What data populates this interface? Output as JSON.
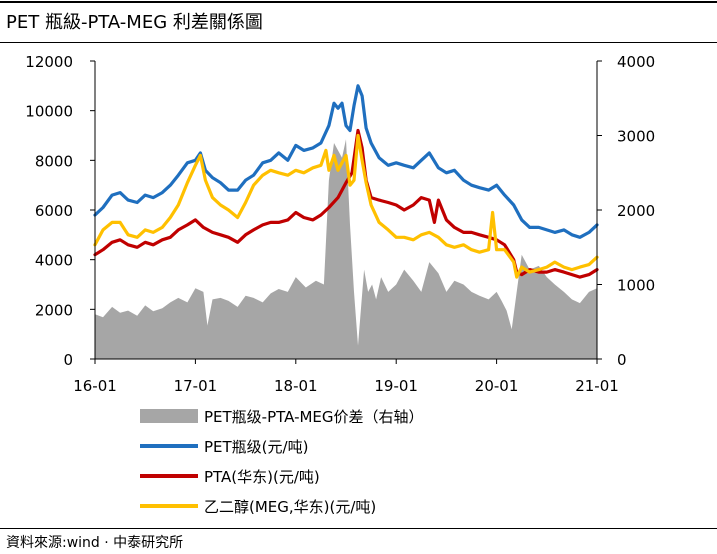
{
  "title": "PET 瓶級-PTA-MEG 利差關係圖",
  "source": "資料來源:wind · 中泰研究所",
  "chart_data": {
    "type": "line",
    "x_ticks": [
      "16-01",
      "17-01",
      "18-01",
      "19-01",
      "20-01",
      "21-01"
    ],
    "x_range": [
      2016.0,
      2021.0
    ],
    "y_left_ticks": [
      "0",
      "2000",
      "4000",
      "6000",
      "8000",
      "10000",
      "12000"
    ],
    "y_left_range": [
      0,
      12000
    ],
    "y_right_ticks": [
      "0",
      "1000",
      "2000",
      "3000",
      "4000"
    ],
    "y_right_range": [
      0,
      4000
    ],
    "series": [
      {
        "name": "PET瓶级-PTA-MEG价差（右轴）",
        "type": "area",
        "axis": "right",
        "color": "#a6a6a6",
        "x": [
          2016.0,
          2016.08,
          2016.17,
          2016.25,
          2016.33,
          2016.42,
          2016.5,
          2016.58,
          2016.67,
          2016.75,
          2016.83,
          2016.92,
          2017.0,
          2017.08,
          2017.12,
          2017.17,
          2017.25,
          2017.33,
          2017.42,
          2017.5,
          2017.58,
          2017.67,
          2017.75,
          2017.83,
          2017.92,
          2018.0,
          2018.1,
          2018.2,
          2018.28,
          2018.33,
          2018.38,
          2018.42,
          2018.46,
          2018.5,
          2018.54,
          2018.58,
          2018.62,
          2018.65,
          2018.68,
          2018.72,
          2018.76,
          2018.8,
          2018.85,
          2018.92,
          2019.0,
          2019.08,
          2019.17,
          2019.25,
          2019.33,
          2019.42,
          2019.5,
          2019.58,
          2019.67,
          2019.75,
          2019.83,
          2019.92,
          2020.0,
          2020.05,
          2020.1,
          2020.15,
          2020.2,
          2020.25,
          2020.33,
          2020.42,
          2020.5,
          2020.58,
          2020.67,
          2020.75,
          2020.83,
          2020.92,
          2021.0
        ],
        "y": [
          600,
          560,
          700,
          620,
          650,
          580,
          720,
          640,
          680,
          760,
          820,
          760,
          950,
          900,
          450,
          800,
          820,
          780,
          700,
          850,
          820,
          760,
          880,
          940,
          900,
          1100,
          960,
          1050,
          1000,
          2400,
          2900,
          2800,
          2700,
          2950,
          1800,
          900,
          180,
          700,
          1200,
          900,
          1000,
          800,
          1100,
          900,
          1000,
          1200,
          1050,
          900,
          1300,
          1150,
          900,
          1050,
          1000,
          900,
          850,
          800,
          900,
          780,
          650,
          400,
          900,
          1400,
          1200,
          1250,
          1100,
          1000,
          900,
          800,
          750,
          900,
          950
        ]
      },
      {
        "name": "PET瓶级(元/吨)",
        "type": "line",
        "axis": "left",
        "color": "#1f6fbf",
        "x": [
          2016.0,
          2016.08,
          2016.17,
          2016.25,
          2016.33,
          2016.42,
          2016.5,
          2016.58,
          2016.67,
          2016.75,
          2016.83,
          2016.92,
          2017.0,
          2017.05,
          2017.1,
          2017.17,
          2017.25,
          2017.33,
          2017.42,
          2017.5,
          2017.58,
          2017.67,
          2017.75,
          2017.83,
          2017.92,
          2018.0,
          2018.08,
          2018.17,
          2018.25,
          2018.33,
          2018.38,
          2018.42,
          2018.46,
          2018.5,
          2018.54,
          2018.58,
          2018.62,
          2018.66,
          2018.7,
          2018.75,
          2018.83,
          2018.92,
          2019.0,
          2019.08,
          2019.17,
          2019.25,
          2019.33,
          2019.42,
          2019.5,
          2019.58,
          2019.67,
          2019.75,
          2019.83,
          2019.92,
          2020.0,
          2020.08,
          2020.17,
          2020.25,
          2020.33,
          2020.42,
          2020.5,
          2020.58,
          2020.67,
          2020.75,
          2020.83,
          2020.92,
          2021.0
        ],
        "y": [
          5800,
          6100,
          6600,
          6700,
          6400,
          6300,
          6600,
          6500,
          6700,
          7000,
          7400,
          7900,
          8000,
          8300,
          7600,
          7300,
          7100,
          6800,
          6800,
          7200,
          7400,
          7900,
          8000,
          8300,
          8000,
          8600,
          8400,
          8500,
          8700,
          9400,
          10300,
          10100,
          10300,
          9400,
          9200,
          10200,
          11000,
          10600,
          9300,
          8700,
          8100,
          7800,
          7900,
          7800,
          7700,
          8000,
          8300,
          7700,
          7500,
          7600,
          7200,
          7000,
          6900,
          6800,
          7000,
          6600,
          6200,
          5600,
          5300,
          5300,
          5200,
          5100,
          5200,
          5000,
          4900,
          5100,
          5400
        ]
      },
      {
        "name": "PTA(华东)(元/吨)",
        "type": "line",
        "axis": "left",
        "color": "#c00000",
        "x": [
          2016.0,
          2016.08,
          2016.17,
          2016.25,
          2016.33,
          2016.42,
          2016.5,
          2016.58,
          2016.67,
          2016.75,
          2016.83,
          2016.92,
          2017.0,
          2017.08,
          2017.17,
          2017.25,
          2017.33,
          2017.42,
          2017.5,
          2017.58,
          2017.67,
          2017.75,
          2017.83,
          2017.92,
          2018.0,
          2018.08,
          2018.17,
          2018.25,
          2018.33,
          2018.42,
          2018.5,
          2018.56,
          2018.62,
          2018.66,
          2018.7,
          2018.75,
          2018.83,
          2018.92,
          2019.0,
          2019.08,
          2019.17,
          2019.25,
          2019.33,
          2019.38,
          2019.42,
          2019.5,
          2019.58,
          2019.67,
          2019.75,
          2019.83,
          2019.92,
          2020.0,
          2020.08,
          2020.17,
          2020.2,
          2020.25,
          2020.33,
          2020.42,
          2020.5,
          2020.58,
          2020.67,
          2020.75,
          2020.83,
          2020.92,
          2021.0
        ],
        "y": [
          4200,
          4400,
          4700,
          4800,
          4600,
          4500,
          4700,
          4600,
          4800,
          4900,
          5200,
          5400,
          5600,
          5300,
          5100,
          5000,
          4900,
          4700,
          5000,
          5200,
          5400,
          5500,
          5500,
          5600,
          5900,
          5700,
          5600,
          5800,
          6100,
          6500,
          7100,
          7500,
          9200,
          8500,
          7200,
          6500,
          6400,
          6300,
          6200,
          6000,
          6200,
          6500,
          6400,
          5500,
          6400,
          5600,
          5300,
          5100,
          5100,
          5000,
          4900,
          4800,
          4600,
          4000,
          3500,
          3400,
          3600,
          3500,
          3500,
          3600,
          3500,
          3400,
          3300,
          3400,
          3600
        ]
      },
      {
        "name": "乙二醇(MEG,华东)(元/吨)",
        "type": "line",
        "axis": "left",
        "color": "#ffc000",
        "x": [
          2016.0,
          2016.08,
          2016.17,
          2016.25,
          2016.33,
          2016.42,
          2016.5,
          2016.58,
          2016.67,
          2016.75,
          2016.83,
          2016.92,
          2017.0,
          2017.05,
          2017.1,
          2017.17,
          2017.25,
          2017.33,
          2017.42,
          2017.5,
          2017.58,
          2017.67,
          2017.75,
          2017.83,
          2017.92,
          2018.0,
          2018.08,
          2018.17,
          2018.25,
          2018.3,
          2018.33,
          2018.38,
          2018.42,
          2018.5,
          2018.54,
          2018.58,
          2018.62,
          2018.66,
          2018.7,
          2018.75,
          2018.83,
          2018.92,
          2019.0,
          2019.08,
          2019.17,
          2019.25,
          2019.33,
          2019.42,
          2019.5,
          2019.58,
          2019.67,
          2019.75,
          2019.83,
          2019.92,
          2019.96,
          2020.0,
          2020.08,
          2020.17,
          2020.2,
          2020.25,
          2020.33,
          2020.42,
          2020.5,
          2020.58,
          2020.67,
          2020.75,
          2020.83,
          2020.92,
          2021.0
        ],
        "y": [
          4600,
          5200,
          5500,
          5500,
          5000,
          4900,
          5200,
          5100,
          5300,
          5700,
          6200,
          7100,
          7800,
          8200,
          7200,
          6500,
          6200,
          6000,
          5700,
          6300,
          7000,
          7400,
          7600,
          7500,
          7400,
          7600,
          7500,
          7700,
          7800,
          8400,
          7600,
          8200,
          7600,
          8200,
          7000,
          7200,
          9000,
          8000,
          7100,
          6200,
          5500,
          5200,
          4900,
          4900,
          4800,
          5000,
          5100,
          4900,
          4600,
          4500,
          4600,
          4400,
          4300,
          4400,
          5900,
          4400,
          4400,
          3900,
          3300,
          3700,
          3500,
          3600,
          3700,
          3900,
          3700,
          3600,
          3700,
          3800,
          4100
        ]
      }
    ],
    "legend_position": "bottom",
    "grid": false
  }
}
